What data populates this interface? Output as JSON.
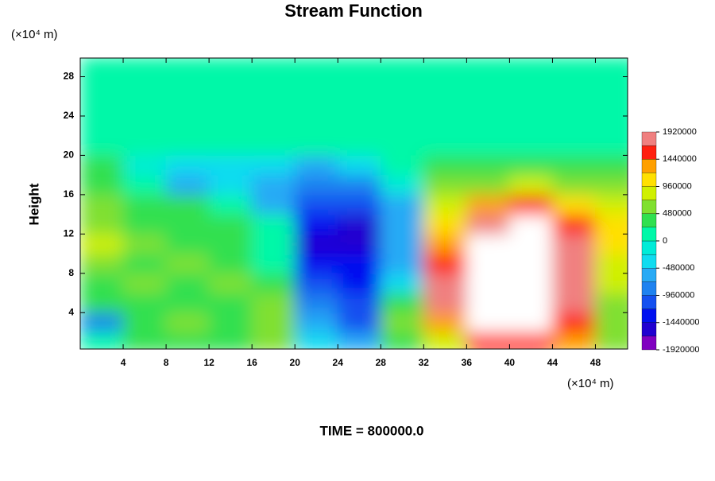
{
  "chart_data": {
    "type": "contour",
    "title": "Stream Function",
    "ylabel": "Height",
    "xunit": "(×10⁴ m)",
    "yunit": "(×10⁴ m)",
    "footer": "TIME = 800000.0",
    "xlim": [
      0,
      51
    ],
    "ylim": [
      0.3,
      29.9
    ],
    "xticks": [
      4,
      8,
      12,
      16,
      20,
      24,
      28,
      32,
      36,
      40,
      44,
      48
    ],
    "yticks": [
      4,
      8,
      12,
      16,
      20,
      24,
      28
    ],
    "x": [
      2,
      6,
      10,
      14,
      18,
      22,
      26,
      30,
      34,
      38,
      42,
      46,
      50
    ],
    "y": [
      1,
      3,
      5,
      7,
      9,
      11,
      13,
      15,
      17,
      19,
      21,
      23,
      25,
      27,
      29
    ],
    "z": [
      [
        200000,
        300000,
        400000,
        400000,
        500000,
        -300000,
        -700000,
        400000,
        900000,
        1500000,
        1600000,
        1200000,
        500000
      ],
      [
        -900000,
        300000,
        500000,
        400000,
        600000,
        -600000,
        -1200000,
        500000,
        1400000,
        2000000,
        2100000,
        1600000,
        600000
      ],
      [
        300000,
        400000,
        400000,
        400000,
        500000,
        -900000,
        -1200000,
        400000,
        1800000,
        2300000,
        2400000,
        1800000,
        700000
      ],
      [
        400000,
        500000,
        300000,
        700000,
        300000,
        -1100000,
        -1300000,
        -300000,
        1700000,
        2300000,
        2400000,
        1900000,
        800000
      ],
      [
        700000,
        400000,
        500000,
        400000,
        200000,
        -1300000,
        -1400000,
        -500000,
        1500000,
        2200000,
        2300000,
        1850000,
        900000
      ],
      [
        850000,
        500000,
        400000,
        300000,
        100000,
        -1450000,
        -1650000,
        -600000,
        1300000,
        2100000,
        2200000,
        1750000,
        1000000
      ],
      [
        700000,
        400000,
        300000,
        300000,
        100000,
        -1300000,
        -1500000,
        -700000,
        1100000,
        1750000,
        1950000,
        1500000,
        1000000
      ],
      [
        600000,
        300000,
        300000,
        200000,
        -500000,
        -1100000,
        -1200000,
        -600000,
        800000,
        1300000,
        1450000,
        1100000,
        800000
      ],
      [
        400000,
        200000,
        -600000,
        -300000,
        -700000,
        -900000,
        -800000,
        -200000,
        500000,
        700000,
        800000,
        700000,
        600000
      ],
      [
        300000,
        -200000,
        -300000,
        -300000,
        -400000,
        -500000,
        -400000,
        100000,
        300000,
        400000,
        400000,
        450000,
        400000
      ],
      [
        100000,
        100000,
        100000,
        100000,
        100000,
        100000,
        100000,
        100000,
        100000,
        100000,
        100000,
        100000,
        100000
      ],
      [
        100000,
        100000,
        100000,
        100000,
        100000,
        100000,
        100000,
        100000,
        100000,
        100000,
        100000,
        100000,
        100000
      ],
      [
        100000,
        100000,
        100000,
        100000,
        100000,
        100000,
        100000,
        100000,
        100000,
        100000,
        100000,
        100000,
        100000
      ],
      [
        100000,
        100000,
        100000,
        100000,
        100000,
        100000,
        100000,
        100000,
        100000,
        100000,
        100000,
        100000,
        100000
      ],
      [
        100000,
        100000,
        100000,
        100000,
        100000,
        100000,
        100000,
        100000,
        100000,
        100000,
        100000,
        100000,
        100000
      ]
    ],
    "levels": [
      -1920000,
      -1680000,
      -1440000,
      -1200000,
      -960000,
      -720000,
      -480000,
      -240000,
      0,
      240000,
      480000,
      720000,
      960000,
      1200000,
      1440000,
      1680000,
      1920000
    ],
    "colors": [
      "#8000c0",
      "#2000d0",
      "#0010f0",
      "#1450f0",
      "#1e82f0",
      "#28aaf5",
      "#10dcf0",
      "#00ecd8",
      "#00f8a8",
      "#30e050",
      "#80e030",
      "#d0f000",
      "#ffe000",
      "#ffa000",
      "#ff2010",
      "#f08080"
    ],
    "above_color": "#ffffff",
    "colorbar_ticks": [
      -1920000,
      -1440000,
      -960000,
      -480000,
      0,
      480000,
      960000,
      1440000,
      1920000
    ]
  }
}
